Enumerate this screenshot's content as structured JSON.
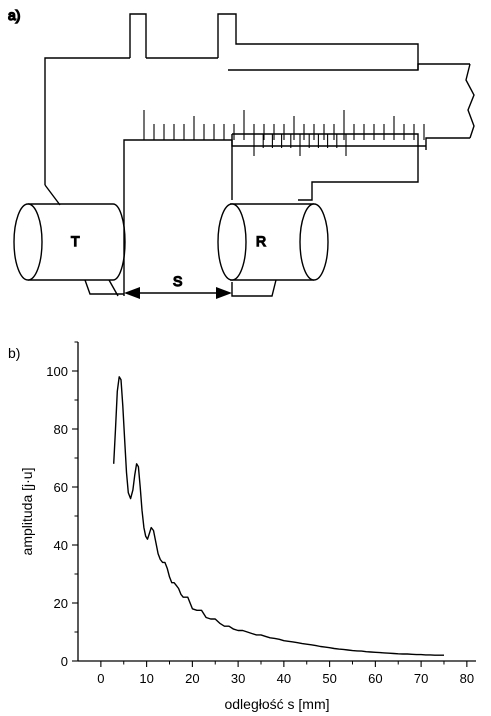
{
  "panel_a": {
    "label": "a)",
    "transmitter_label": "T",
    "receiver_label": "R",
    "distance_label": "S"
  },
  "panel_b": {
    "label": "b)"
  },
  "chart_data": {
    "type": "line",
    "title": "",
    "xlabel": "odległość s [mm]",
    "ylabel": "amplituda [j·u]",
    "xlim": [
      -5,
      82
    ],
    "ylim": [
      0,
      110
    ],
    "xticks": [
      0,
      10,
      20,
      30,
      40,
      50,
      60,
      70,
      80
    ],
    "yticks": [
      0,
      20,
      40,
      60,
      80,
      100
    ],
    "grid": false,
    "legend": "none",
    "series": [
      {
        "color": "#000000",
        "x": [
          2.8,
          3.2,
          3.6,
          4.0,
          4.4,
          4.8,
          5.2,
          5.6,
          6.0,
          6.5,
          7.0,
          7.4,
          7.8,
          8.2,
          8.6,
          9.0,
          9.4,
          9.8,
          10.2,
          10.6,
          11.0,
          11.5,
          12.0,
          12.5,
          13.0,
          13.5,
          14.0,
          14.5,
          15.0,
          15.5,
          16.0,
          16.5,
          17.0,
          17.5,
          18.0,
          18.5,
          19.0,
          19.5,
          20.0,
          21.0,
          22.0,
          23.0,
          24.0,
          25.0,
          26.0,
          27.0,
          28.0,
          29.0,
          30.0,
          31.0,
          32.0,
          33.0,
          34.0,
          35.0,
          36.0,
          37.0,
          38.0,
          39.0,
          40.0,
          41.0,
          42.0,
          43.0,
          44.0,
          45.0,
          46.0,
          47.0,
          48.0,
          49.0,
          50.0,
          51.0,
          52.0,
          53.0,
          54.0,
          55.0,
          56.0,
          57.0,
          58.0,
          59.0,
          60.0,
          61.0,
          62.0,
          63.0,
          64.0,
          65.0,
          66.0,
          67.0,
          68.0,
          69.0,
          70.0,
          71.0,
          72.0,
          73.0,
          74.0,
          75.0
        ],
        "y": [
          68,
          80,
          93,
          98,
          97,
          88,
          76,
          65,
          58,
          56,
          59,
          64,
          68,
          67,
          60,
          52,
          46,
          43,
          42,
          44,
          46,
          45,
          41,
          37,
          35,
          34,
          34,
          32,
          29,
          27,
          27,
          26,
          25,
          23,
          22,
          22,
          22,
          20,
          18,
          17.5,
          17.5,
          15,
          14.5,
          14.5,
          13,
          12,
          12,
          11,
          10.5,
          10.5,
          10,
          9.5,
          9,
          9,
          8.5,
          8,
          7.8,
          7.5,
          7,
          6.8,
          6.6,
          6.3,
          6,
          5.8,
          5.6,
          5.3,
          5,
          4.8,
          4.6,
          4.3,
          4.1,
          4,
          3.8,
          3.6,
          3.5,
          3.4,
          3.2,
          3.1,
          3,
          2.9,
          2.8,
          2.7,
          2.6,
          2.5,
          2.4,
          2.4,
          2.3,
          2.2,
          2.2,
          2.1,
          2.1,
          2.0,
          2.0,
          2.0
        ]
      }
    ]
  }
}
